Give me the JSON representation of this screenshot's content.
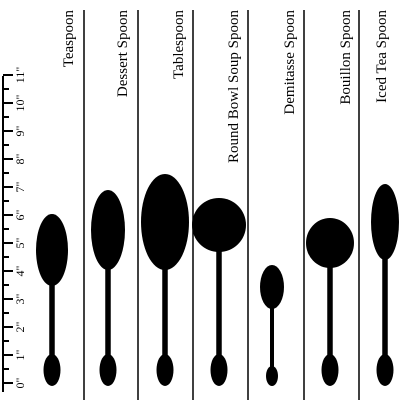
{
  "ruler": {
    "labels": [
      "0\"",
      "1\"",
      "2\"",
      "3\"",
      "4\"",
      "5\"",
      "6\"",
      "7\"",
      "8\"",
      "9\"",
      "10\"",
      "11\""
    ]
  },
  "spoons": [
    {
      "name": "Teaspoon"
    },
    {
      "name": "Dessert Spoon"
    },
    {
      "name": "Tablespoon"
    },
    {
      "name": "Round Bowl Soup Spoon"
    },
    {
      "name": "Demitasse Spoon"
    },
    {
      "name": "Bouillon Spoon"
    },
    {
      "name": "Iced Tea Spoon"
    }
  ]
}
